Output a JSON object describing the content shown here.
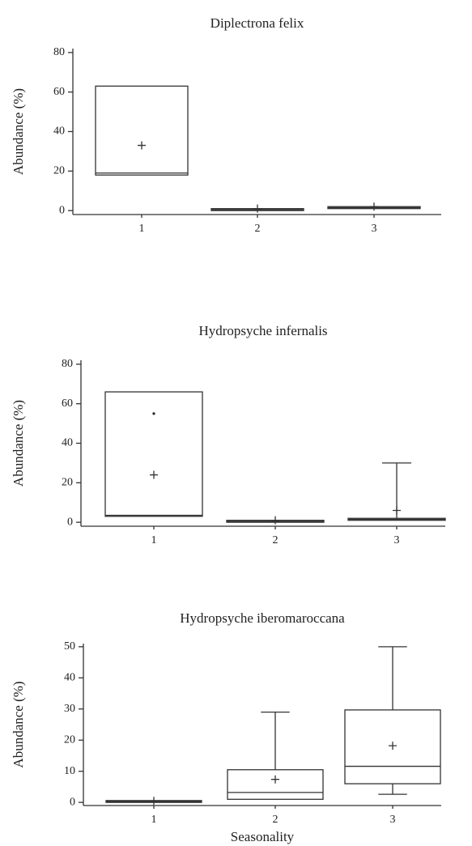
{
  "chart_data": [
    {
      "type": "box",
      "title": "Diplectrona felix",
      "ylabel": "Abundance (%)",
      "categories": [
        "1",
        "2",
        "3"
      ],
      "boxes": [
        {
          "min": 18,
          "q1": 18,
          "median": 19,
          "q3": 63,
          "max": 63,
          "mean": 33
        },
        {
          "min": 0,
          "q1": 0,
          "median": 0.5,
          "q3": 1,
          "max": 1,
          "mean": 1
        },
        {
          "min": 1,
          "q1": 1,
          "median": 1.5,
          "q3": 2,
          "max": 2,
          "mean": 2
        }
      ],
      "ylim": [
        -2,
        82
      ],
      "yticks": [
        0,
        20,
        40,
        60,
        80
      ]
    },
    {
      "type": "box",
      "title": "Hydropsyche infernalis",
      "ylabel": "Abundance (%)",
      "categories": [
        "1",
        "2",
        "3"
      ],
      "boxes": [
        {
          "min": 3,
          "q1": 3,
          "median": 3.5,
          "q3": 66,
          "max": 66,
          "mean": 24,
          "outliers": [
            55
          ]
        },
        {
          "min": 0,
          "q1": 0,
          "median": 0.5,
          "q3": 1,
          "max": 1,
          "mean": 1
        },
        {
          "min": 1,
          "q1": 1,
          "median": 1.5,
          "q3": 2,
          "max": 30,
          "mean": 6
        }
      ],
      "ylim": [
        -2,
        82
      ],
      "yticks": [
        0,
        20,
        40,
        60,
        80
      ]
    },
    {
      "type": "box",
      "title": "Hydropsyche iberomaroccana",
      "ylabel": "Abundance (%)",
      "xlabel": "Seasonality",
      "categories": [
        "1",
        "2",
        "3"
      ],
      "boxes": [
        {
          "min": 0,
          "q1": 0,
          "median": 0.3,
          "q3": 0.6,
          "max": 0.6,
          "mean": 0.5
        },
        {
          "min": 1,
          "q1": 1,
          "median": 3.2,
          "q3": 10.5,
          "max": 29,
          "mean": 7.4
        },
        {
          "min": 2.6,
          "q1": 6,
          "median": 11.6,
          "q3": 29.7,
          "max": 50,
          "mean": 18.2
        }
      ],
      "ylim": [
        -1,
        51
      ],
      "yticks": [
        0,
        10,
        20,
        30,
        40,
        50
      ]
    }
  ]
}
